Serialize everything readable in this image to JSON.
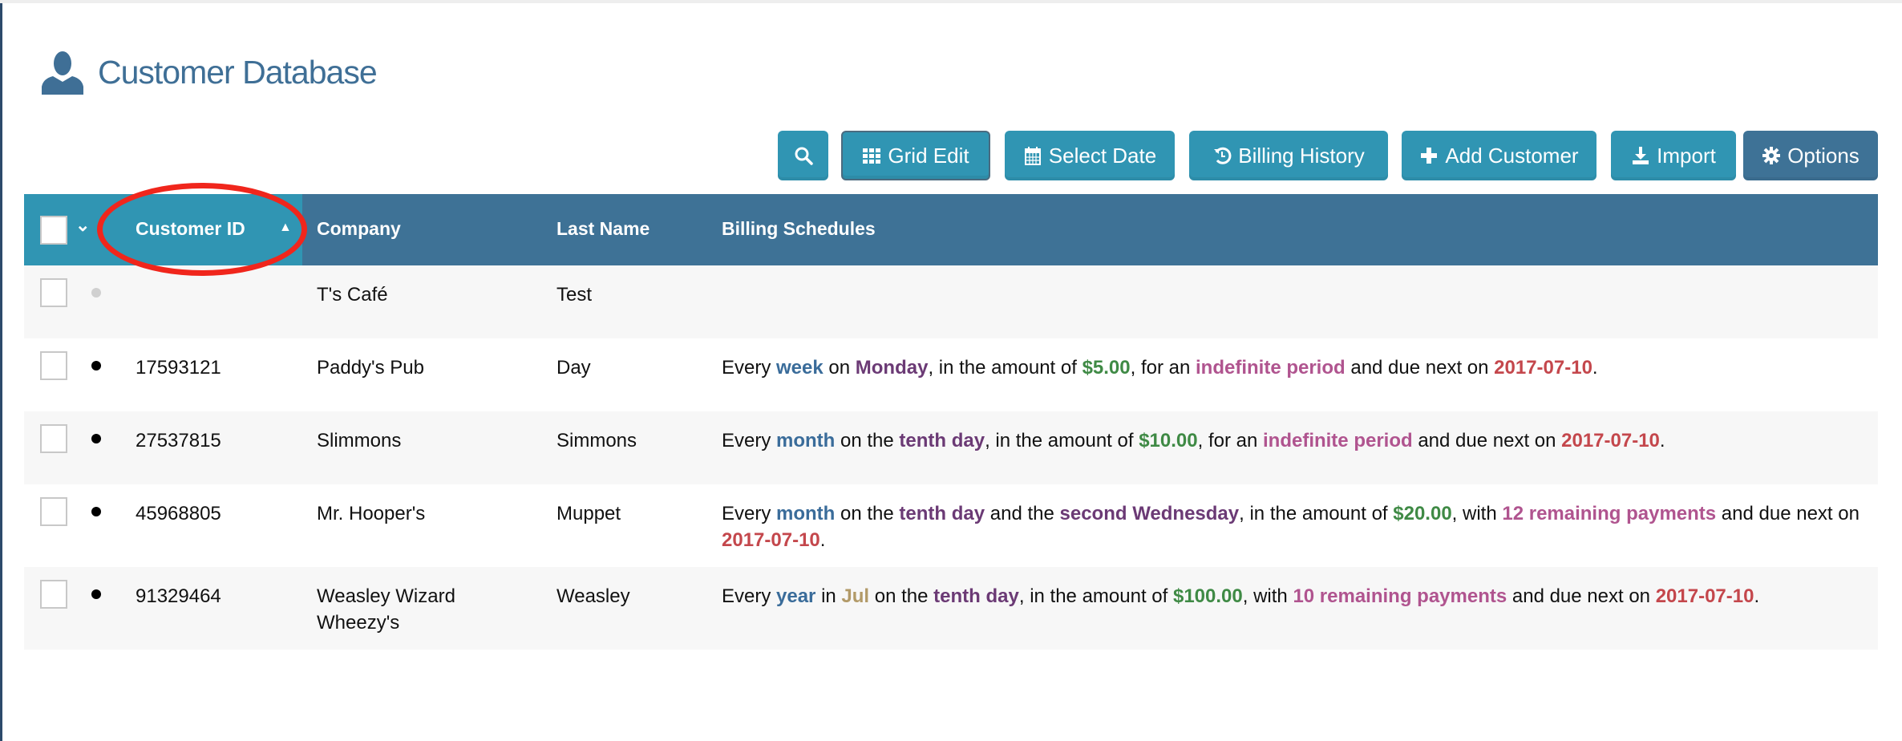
{
  "page": {
    "title": "Customer Database",
    "icon": "user-icon"
  },
  "toolbar": {
    "search": {
      "icon": "search-icon"
    },
    "grid_edit": {
      "label": "Grid Edit",
      "icon": "grid-icon"
    },
    "select_date": {
      "label": "Select Date",
      "icon": "calendar-icon"
    },
    "billing_history": {
      "label": "Billing History",
      "icon": "history-icon"
    },
    "add_customer": {
      "label": "Add Customer",
      "icon": "plus-icon"
    },
    "import": {
      "label": "Import",
      "icon": "download-icon"
    },
    "options": {
      "label": "Options",
      "icon": "gear-icon"
    }
  },
  "colors": {
    "accent": "#3095b3",
    "header": "#3e7296",
    "annotation": "#f0261c",
    "period": "#3a6c9a",
    "day": "#6b3a75",
    "amount": "#3f8a45",
    "term": "#b0548f",
    "date": "#c4474c",
    "month": "#b29a68"
  },
  "table": {
    "columns": {
      "customer_id": "Customer ID",
      "company": "Company",
      "last_name": "Last Name",
      "billing": "Billing Schedules"
    },
    "sort": {
      "column": "Customer ID",
      "direction": "ascending"
    },
    "rows": [
      {
        "id": "",
        "company": "T's Café",
        "last_name": "Test",
        "active": false,
        "billing": []
      },
      {
        "id": "17593121",
        "company": "Paddy's Pub",
        "last_name": "Day",
        "active": true,
        "billing": [
          {
            "t": "Every "
          },
          {
            "t": "week",
            "c": "period"
          },
          {
            "t": " on "
          },
          {
            "t": "Monday",
            "c": "day"
          },
          {
            "t": ", in the amount of "
          },
          {
            "t": "$5.00",
            "c": "amount"
          },
          {
            "t": ", for an "
          },
          {
            "t": "indefinite period",
            "c": "term"
          },
          {
            "t": " and due next on "
          },
          {
            "t": "2017-07-10",
            "c": "date"
          },
          {
            "t": "."
          }
        ]
      },
      {
        "id": "27537815",
        "company": "Slimmons",
        "last_name": "Simmons",
        "active": true,
        "billing": [
          {
            "t": "Every "
          },
          {
            "t": "month",
            "c": "period"
          },
          {
            "t": " on the "
          },
          {
            "t": "tenth day",
            "c": "day"
          },
          {
            "t": ", in the amount of "
          },
          {
            "t": "$10.00",
            "c": "amount"
          },
          {
            "t": ", for an "
          },
          {
            "t": "indefinite period",
            "c": "term"
          },
          {
            "t": " and due next on "
          },
          {
            "t": "2017-07-10",
            "c": "date"
          },
          {
            "t": "."
          }
        ]
      },
      {
        "id": "45968805",
        "company": "Mr. Hooper's",
        "last_name": "Muppet",
        "active": true,
        "billing": [
          {
            "t": "Every "
          },
          {
            "t": "month",
            "c": "period"
          },
          {
            "t": " on the "
          },
          {
            "t": "tenth day",
            "c": "day"
          },
          {
            "t": " and the "
          },
          {
            "t": "second Wednesday",
            "c": "day"
          },
          {
            "t": ", in the amount of "
          },
          {
            "t": "$20.00",
            "c": "amount"
          },
          {
            "t": ", with "
          },
          {
            "t": "12 remaining payments",
            "c": "term"
          },
          {
            "t": " and due next on "
          },
          {
            "t": "2017-07-10",
            "c": "date"
          },
          {
            "t": "."
          }
        ]
      },
      {
        "id": "91329464",
        "company": "Weasley Wizard Wheezy's",
        "last_name": "Weasley",
        "active": true,
        "billing": [
          {
            "t": "Every "
          },
          {
            "t": "year",
            "c": "period"
          },
          {
            "t": " in "
          },
          {
            "t": "Jul",
            "c": "month"
          },
          {
            "t": " on the "
          },
          {
            "t": "tenth day",
            "c": "day"
          },
          {
            "t": ", in the amount of "
          },
          {
            "t": "$100.00",
            "c": "amount"
          },
          {
            "t": ", with "
          },
          {
            "t": "10 remaining payments",
            "c": "term"
          },
          {
            "t": " and due next on "
          },
          {
            "t": "2017-07-10",
            "c": "date"
          },
          {
            "t": "."
          }
        ]
      }
    ]
  }
}
